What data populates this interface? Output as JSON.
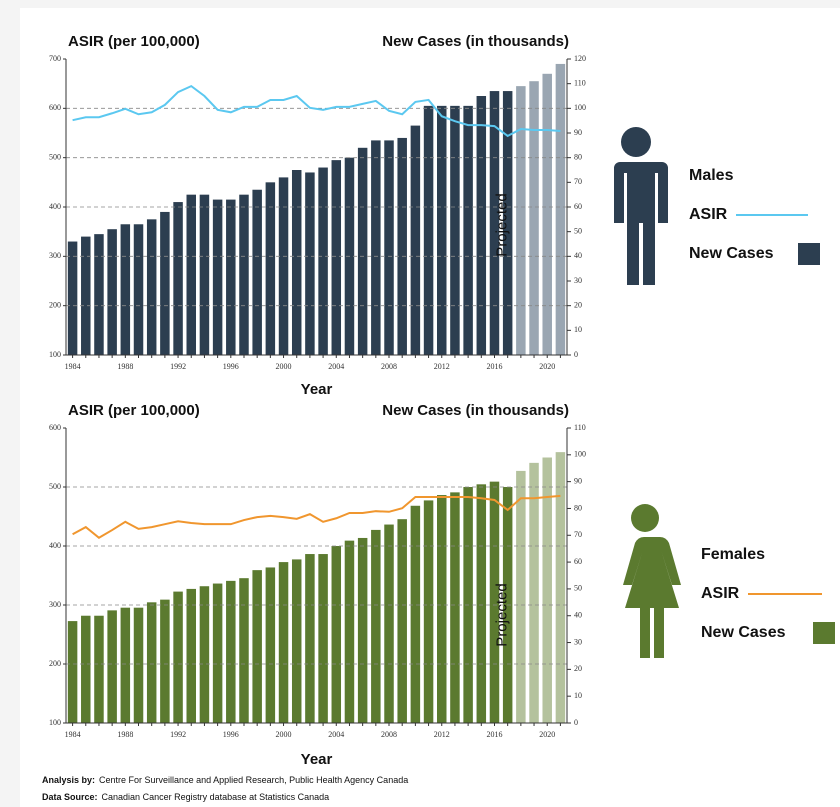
{
  "chart_data": [
    {
      "type": "combo",
      "y_label": "ASIR (per 100,000)",
      "y2_label": "New Cases (in thousands)",
      "x_label": "Year",
      "annotation": "Projected",
      "legend_title": "Males",
      "categories": [
        "1984",
        null,
        null,
        null,
        "1988",
        null,
        null,
        null,
        "1992",
        null,
        null,
        null,
        "1996",
        null,
        null,
        null,
        "2000",
        null,
        null,
        null,
        "2004",
        null,
        null,
        null,
        "2008",
        null,
        null,
        null,
        "2012",
        null,
        null,
        null,
        "2016",
        null,
        null,
        null,
        "2020",
        null
      ],
      "series": [
        {
          "name": "New Cases",
          "type": "bar",
          "axis": "y2",
          "color": "#2c3e50",
          "colors": [
            "#2c3e50",
            "#2c3e50",
            "#2c3e50",
            "#2c3e50",
            "#2c3e50",
            "#2c3e50",
            "#2c3e50",
            "#2c3e50",
            "#2c3e50",
            "#2c3e50",
            "#2c3e50",
            "#2c3e50",
            "#2c3e50",
            "#2c3e50",
            "#2c3e50",
            "#2c3e50",
            "#2c3e50",
            "#2c3e50",
            "#2c3e50",
            "#2c3e50",
            "#2c3e50",
            "#2c3e50",
            "#2c3e50",
            "#2c3e50",
            "#2c3e50",
            "#2c3e50",
            "#2c3e50",
            "#2c3e50",
            "#2c3e50",
            "#2c3e50",
            "#2c3e50",
            "#2c3e50",
            "#2c3e50",
            "#2c3e50",
            "#9aa6b2",
            "#9aa6b2",
            "#9aa6b2",
            "#9aa6b2"
          ],
          "values": [
            46,
            48,
            49,
            51,
            53,
            53,
            55,
            58,
            62,
            65,
            65,
            63,
            63,
            65,
            67,
            70,
            72,
            75,
            74,
            76,
            79,
            80,
            84,
            87,
            87,
            88,
            93,
            101,
            101,
            101,
            101,
            105,
            107,
            107,
            109,
            111,
            114,
            118
          ]
        },
        {
          "name": "ASIR",
          "type": "line",
          "axis": "y",
          "color": "#5bc8f0",
          "values": [
            576,
            582,
            582,
            590,
            599,
            588,
            592,
            607,
            633,
            645,
            625,
            597,
            592,
            603,
            603,
            617,
            617,
            625,
            601,
            597,
            603,
            603,
            609,
            615,
            595,
            588,
            613,
            617,
            584,
            574,
            566,
            566,
            564,
            544,
            558,
            556,
            556,
            554
          ]
        }
      ],
      "ylim": [
        100,
        700
      ],
      "yticks": [
        100,
        200,
        300,
        400,
        500,
        600,
        700
      ],
      "y2lim": [
        0,
        120
      ],
      "y2ticks": [
        0,
        10,
        20,
        30,
        40,
        50,
        60,
        70,
        80,
        90,
        100,
        110,
        120
      ],
      "grid": true
    },
    {
      "type": "combo",
      "y_label": "ASIR (per 100,000)",
      "y2_label": "New Cases (in thousands)",
      "x_label": "Year",
      "annotation": "Projected",
      "legend_title": "Females",
      "categories": [
        "1984",
        null,
        null,
        null,
        "1988",
        null,
        null,
        null,
        "1992",
        null,
        null,
        null,
        "1996",
        null,
        null,
        null,
        "2000",
        null,
        null,
        null,
        "2004",
        null,
        null,
        null,
        "2008",
        null,
        null,
        null,
        "2012",
        null,
        null,
        null,
        "2016",
        null,
        null,
        null,
        "2020",
        null
      ],
      "series": [
        {
          "name": "New Cases",
          "type": "bar",
          "axis": "y2",
          "color": "#5b7a2f",
          "colors": [
            "#5b7a2f",
            "#5b7a2f",
            "#5b7a2f",
            "#5b7a2f",
            "#5b7a2f",
            "#5b7a2f",
            "#5b7a2f",
            "#5b7a2f",
            "#5b7a2f",
            "#5b7a2f",
            "#5b7a2f",
            "#5b7a2f",
            "#5b7a2f",
            "#5b7a2f",
            "#5b7a2f",
            "#5b7a2f",
            "#5b7a2f",
            "#5b7a2f",
            "#5b7a2f",
            "#5b7a2f",
            "#5b7a2f",
            "#5b7a2f",
            "#5b7a2f",
            "#5b7a2f",
            "#5b7a2f",
            "#5b7a2f",
            "#5b7a2f",
            "#5b7a2f",
            "#5b7a2f",
            "#5b7a2f",
            "#5b7a2f",
            "#5b7a2f",
            "#5b7a2f",
            "#5b7a2f",
            "#b4c29d",
            "#b4c29d",
            "#b4c29d",
            "#b4c29d"
          ],
          "values": [
            38,
            40,
            40,
            42,
            43,
            43,
            45,
            46,
            49,
            50,
            51,
            52,
            53,
            54,
            57,
            58,
            60,
            61,
            63,
            63,
            66,
            68,
            69,
            72,
            74,
            76,
            81,
            83,
            85,
            86,
            88,
            89,
            90,
            88,
            94,
            97,
            99,
            101
          ]
        },
        {
          "name": "ASIR",
          "type": "line",
          "axis": "y",
          "color": "#f0962e",
          "values": [
            420,
            432,
            414,
            427,
            441,
            429,
            432,
            437,
            442,
            439,
            437,
            437,
            437,
            444,
            449,
            451,
            449,
            446,
            454,
            441,
            447,
            456,
            456,
            459,
            458,
            464,
            483,
            483,
            483,
            483,
            483,
            481,
            478,
            461,
            481,
            481,
            483,
            485
          ]
        }
      ],
      "ylim": [
        100,
        600
      ],
      "yticks": [
        100,
        200,
        300,
        400,
        500,
        600
      ],
      "y2lim": [
        0,
        110
      ],
      "y2ticks": [
        0,
        10,
        20,
        30,
        40,
        50,
        60,
        70,
        80,
        90,
        100,
        110
      ],
      "grid": true
    }
  ],
  "footer": [
    {
      "label": "Analysis by:",
      "text": "Centre For Surveillance and Applied Research, Public Health Agency Canada"
    },
    {
      "label": "Data Source:",
      "text": "Canadian Cancer Registry database at Statistics Canada"
    }
  ]
}
